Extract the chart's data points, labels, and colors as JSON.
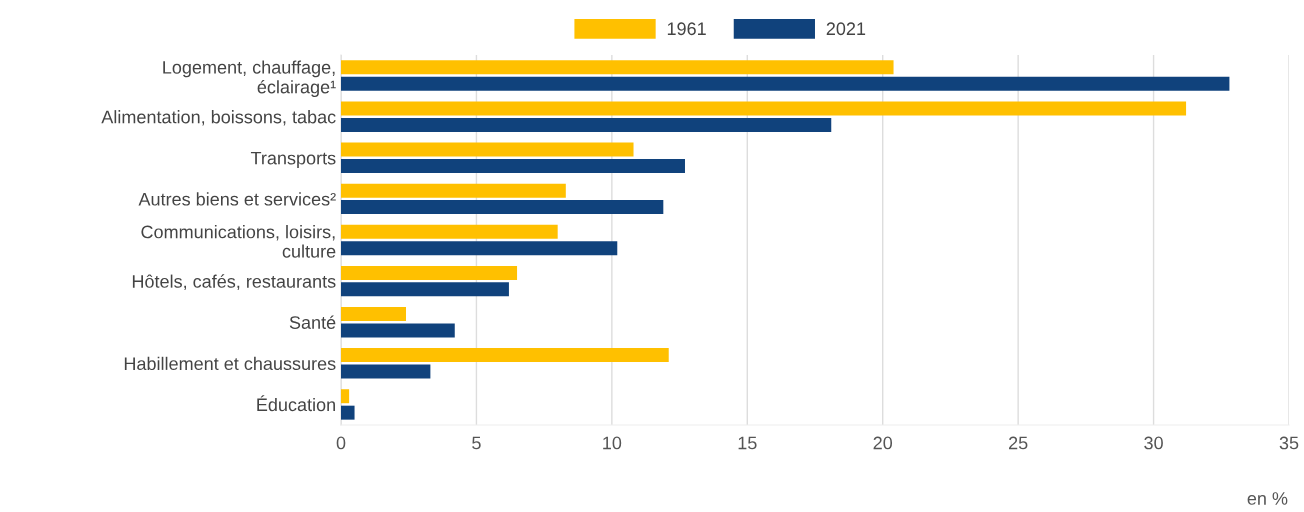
{
  "chart_data": {
    "type": "bar",
    "orientation": "horizontal",
    "categories": [
      "Logement, chauffage,\néclairage¹",
      "Alimentation, boissons, tabac",
      "Transports",
      "Autres biens et services²",
      "Communications, loisirs,\nculture",
      "Hôtels, cafés, restaurants",
      "Santé",
      "Habillement et chaussures",
      "Éducation"
    ],
    "series": [
      {
        "name": "1961",
        "color": "#ffc000",
        "values": [
          20.4,
          31.2,
          10.8,
          8.3,
          8.0,
          6.5,
          2.4,
          12.1,
          0.3
        ]
      },
      {
        "name": "2021",
        "color": "#10427c",
        "values": [
          32.8,
          18.1,
          12.7,
          11.9,
          10.2,
          6.2,
          4.2,
          3.3,
          0.5
        ]
      }
    ],
    "xlim": [
      0,
      35
    ],
    "xticks": [
      0,
      5,
      10,
      15,
      20,
      25,
      30,
      35
    ],
    "grid": "x",
    "legend": "top",
    "annotations": [
      "en %"
    ]
  }
}
